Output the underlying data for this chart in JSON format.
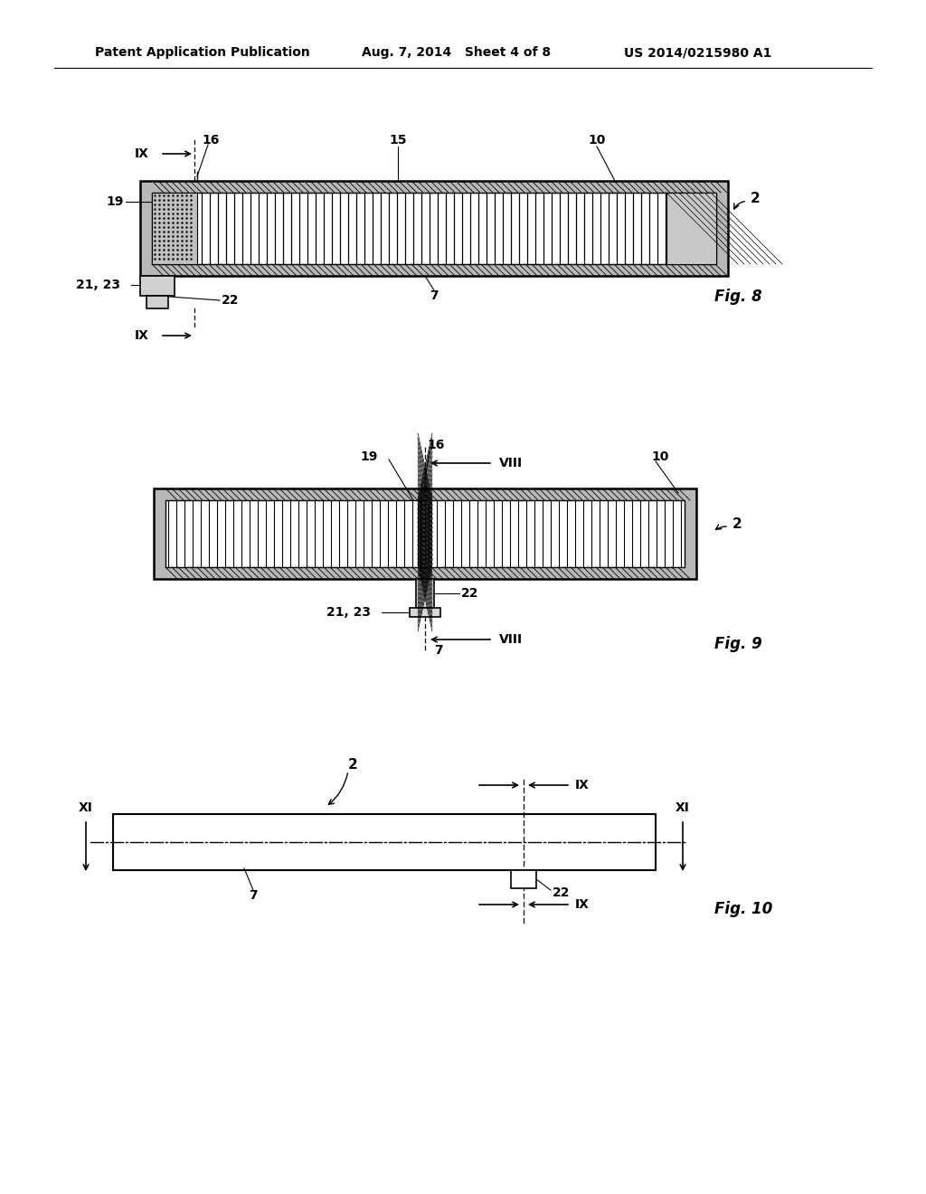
{
  "bg_color": "#ffffff",
  "line_color": "#000000",
  "header_left": "Patent Application Publication",
  "header_mid": "Aug. 7, 2014   Sheet 4 of 8",
  "header_right": "US 2014/0215980 A1",
  "fig8_label": "Fig. 8",
  "fig9_label": "Fig. 9",
  "fig10_label": "Fig. 10"
}
